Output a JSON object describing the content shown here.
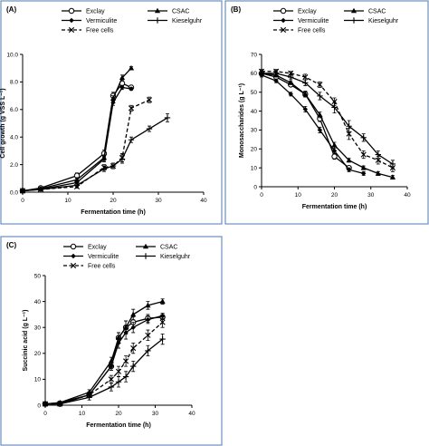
{
  "chart_data": [
    {
      "type": "line",
      "panel_label": "(A)",
      "xlabel": "Fermentation time (h)",
      "ylabel": "Cell growth (g VSS L⁻¹)",
      "xlim": [
        0,
        40
      ],
      "ylim": [
        0,
        10
      ],
      "xticks": [
        0,
        10,
        20,
        30,
        40
      ],
      "yticks": [
        0.0,
        2.0,
        4.0,
        6.0,
        8.0,
        10.0
      ],
      "ytick_labels": [
        "0.0",
        "2.0",
        "4.0",
        "6.0",
        "8.0",
        "10.0"
      ],
      "legend": [
        "Exclay",
        "CSAC",
        "Vermiculite",
        "Kieselguhr",
        "Free cells"
      ],
      "series": [
        {
          "name": "Exclay",
          "marker": "circle-open",
          "dash": false,
          "x": [
            0,
            4,
            12,
            18,
            20,
            22,
            24
          ],
          "y": [
            0.1,
            0.3,
            1.2,
            2.8,
            7.0,
            7.9,
            7.6
          ],
          "err": [
            0.05,
            0.1,
            0.2,
            0.25,
            0.25,
            0.2,
            0.15
          ]
        },
        {
          "name": "CSAC",
          "marker": "triangle",
          "dash": false,
          "x": [
            0,
            4,
            12,
            18,
            20,
            22,
            24
          ],
          "y": [
            0.1,
            0.25,
            0.9,
            2.5,
            6.8,
            8.3,
            9.0
          ],
          "err": [
            0.05,
            0.1,
            0.15,
            0.2,
            0.2,
            0.2,
            0.1
          ]
        },
        {
          "name": "Vermiculite",
          "marker": "diamond",
          "dash": false,
          "x": [
            0,
            4,
            12,
            18,
            20,
            22,
            24
          ],
          "y": [
            0.1,
            0.2,
            0.7,
            2.4,
            6.5,
            7.6,
            7.5
          ],
          "err": [
            0.05,
            0.05,
            0.1,
            0.2,
            0.2,
            0.15,
            0.1
          ]
        },
        {
          "name": "Kieselguhr",
          "marker": "plus",
          "dash": false,
          "x": [
            0,
            4,
            12,
            18,
            20,
            22,
            24,
            28,
            32
          ],
          "y": [
            0.1,
            0.2,
            0.5,
            1.7,
            1.9,
            2.4,
            3.8,
            4.6,
            5.4
          ],
          "err": [
            0.05,
            0.05,
            0.1,
            0.2,
            0.2,
            0.3,
            0.2,
            0.2,
            0.3
          ]
        },
        {
          "name": "Free cells",
          "marker": "cross",
          "dash": true,
          "x": [
            0,
            4,
            12,
            18,
            20,
            22,
            24,
            28
          ],
          "y": [
            0.1,
            0.2,
            0.4,
            1.8,
            1.9,
            2.5,
            6.1,
            6.7
          ],
          "err": [
            0.05,
            0.05,
            0.1,
            0.2,
            0.2,
            0.3,
            0.2,
            0.2
          ]
        }
      ]
    },
    {
      "type": "line",
      "panel_label": "(B)",
      "xlabel": "Fermentation time (h)",
      "ylabel": "Monosaccharides (g L⁻¹)",
      "xlim": [
        0,
        40
      ],
      "ylim": [
        0,
        70
      ],
      "xticks": [
        0,
        10,
        20,
        30,
        40
      ],
      "yticks": [
        0,
        10,
        20,
        30,
        40,
        50,
        60,
        70
      ],
      "ytick_labels": [
        "0",
        "10",
        "20",
        "30",
        "40",
        "50",
        "60",
        "70"
      ],
      "legend": [
        "Exclay",
        "CSAC",
        "Vermiculite",
        "Kieselguhr",
        "Free cells"
      ],
      "series": [
        {
          "name": "Exclay",
          "marker": "circle-open",
          "dash": false,
          "x": [
            0,
            4,
            8,
            12,
            16,
            20,
            24
          ],
          "y": [
            60,
            58,
            54,
            49,
            36,
            16,
            10
          ],
          "err": [
            1,
            1,
            1,
            1.5,
            1.5,
            1.5,
            1
          ]
        },
        {
          "name": "CSAC",
          "marker": "triangle",
          "dash": false,
          "x": [
            0,
            4,
            8,
            12,
            16,
            20,
            24,
            28,
            32,
            36
          ],
          "y": [
            60,
            59,
            55,
            49,
            38,
            22,
            14,
            10,
            7,
            5
          ],
          "err": [
            1,
            1,
            1,
            1.5,
            1.5,
            1.5,
            1,
            1,
            1,
            1
          ]
        },
        {
          "name": "Vermiculite",
          "marker": "diamond",
          "dash": false,
          "x": [
            0,
            4,
            8,
            12,
            16,
            20,
            24,
            28
          ],
          "y": [
            59,
            56,
            49,
            41,
            30,
            19,
            9,
            7
          ],
          "err": [
            1,
            1,
            1,
            1.5,
            1.5,
            1.5,
            1,
            1
          ]
        },
        {
          "name": "Kieselguhr",
          "marker": "plus",
          "dash": false,
          "x": [
            0,
            4,
            8,
            12,
            16,
            20,
            24,
            28,
            32,
            36
          ],
          "y": [
            60,
            60,
            58,
            55,
            48,
            42,
            32,
            26,
            17,
            12
          ],
          "err": [
            1,
            1,
            1,
            1.5,
            2,
            3,
            3,
            2,
            2,
            2
          ]
        },
        {
          "name": "Free cells",
          "marker": "cross",
          "dash": true,
          "x": [
            0,
            4,
            8,
            12,
            16,
            20,
            24,
            28,
            32,
            36
          ],
          "y": [
            61,
            61,
            60,
            58,
            54,
            45,
            28,
            17,
            14,
            10
          ],
          "err": [
            1,
            1,
            1,
            1.5,
            1.5,
            2,
            3,
            2,
            2,
            2
          ]
        }
      ]
    },
    {
      "type": "line",
      "panel_label": "(C)",
      "xlabel": "Fermentation time (h)",
      "ylabel": "Succinic acid (g L⁻¹)",
      "xlim": [
        0,
        40
      ],
      "ylim": [
        0,
        50
      ],
      "xticks": [
        0,
        10,
        20,
        30,
        40
      ],
      "yticks": [
        0,
        10,
        20,
        30,
        40,
        50
      ],
      "ytick_labels": [
        "0",
        "10",
        "20",
        "30",
        "40",
        "50"
      ],
      "legend": [
        "Exclay",
        "CSAC",
        "Vermiculite",
        "Kieselguhr",
        "Free cells"
      ],
      "series": [
        {
          "name": "Exclay",
          "marker": "circle-open",
          "dash": false,
          "x": [
            0,
            4,
            12,
            18,
            20,
            22,
            24,
            28,
            32
          ],
          "y": [
            0.5,
            0.5,
            4,
            15,
            26,
            30,
            32,
            33.5,
            34
          ],
          "err": [
            0.5,
            0.5,
            1,
            1.5,
            2,
            2.5,
            2,
            1.5,
            1
          ]
        },
        {
          "name": "CSAC",
          "marker": "triangle",
          "dash": false,
          "x": [
            0,
            4,
            12,
            18,
            20,
            22,
            24,
            28,
            32
          ],
          "y": [
            0.5,
            1,
            5,
            17,
            26,
            30,
            35,
            38.5,
            40
          ],
          "err": [
            0.5,
            0.5,
            1,
            1.5,
            2,
            2.5,
            2,
            1.5,
            1
          ]
        },
        {
          "name": "Vermiculite",
          "marker": "diamond",
          "dash": false,
          "x": [
            0,
            4,
            12,
            18,
            20,
            22,
            24,
            28,
            32
          ],
          "y": [
            0.5,
            1,
            4,
            15,
            24,
            28,
            30,
            33,
            34.5
          ],
          "err": [
            0.5,
            0.5,
            1,
            1.5,
            2,
            2.5,
            2,
            1.5,
            1
          ]
        },
        {
          "name": "Kieselguhr",
          "marker": "plus",
          "dash": false,
          "x": [
            0,
            4,
            12,
            18,
            20,
            22,
            24,
            28,
            32
          ],
          "y": [
            0.5,
            0.5,
            3,
            7,
            9,
            11,
            15,
            21,
            25.5
          ],
          "err": [
            0.5,
            0.5,
            1,
            1.5,
            2,
            2,
            2,
            2,
            2
          ]
        },
        {
          "name": "Free cells",
          "marker": "cross",
          "dash": true,
          "x": [
            0,
            4,
            12,
            18,
            20,
            22,
            24,
            28,
            32
          ],
          "y": [
            0.5,
            0.5,
            4,
            10,
            13,
            17,
            22,
            27,
            32
          ],
          "err": [
            0.5,
            0.5,
            1,
            1.5,
            2,
            2,
            2,
            2,
            2
          ]
        }
      ]
    }
  ]
}
